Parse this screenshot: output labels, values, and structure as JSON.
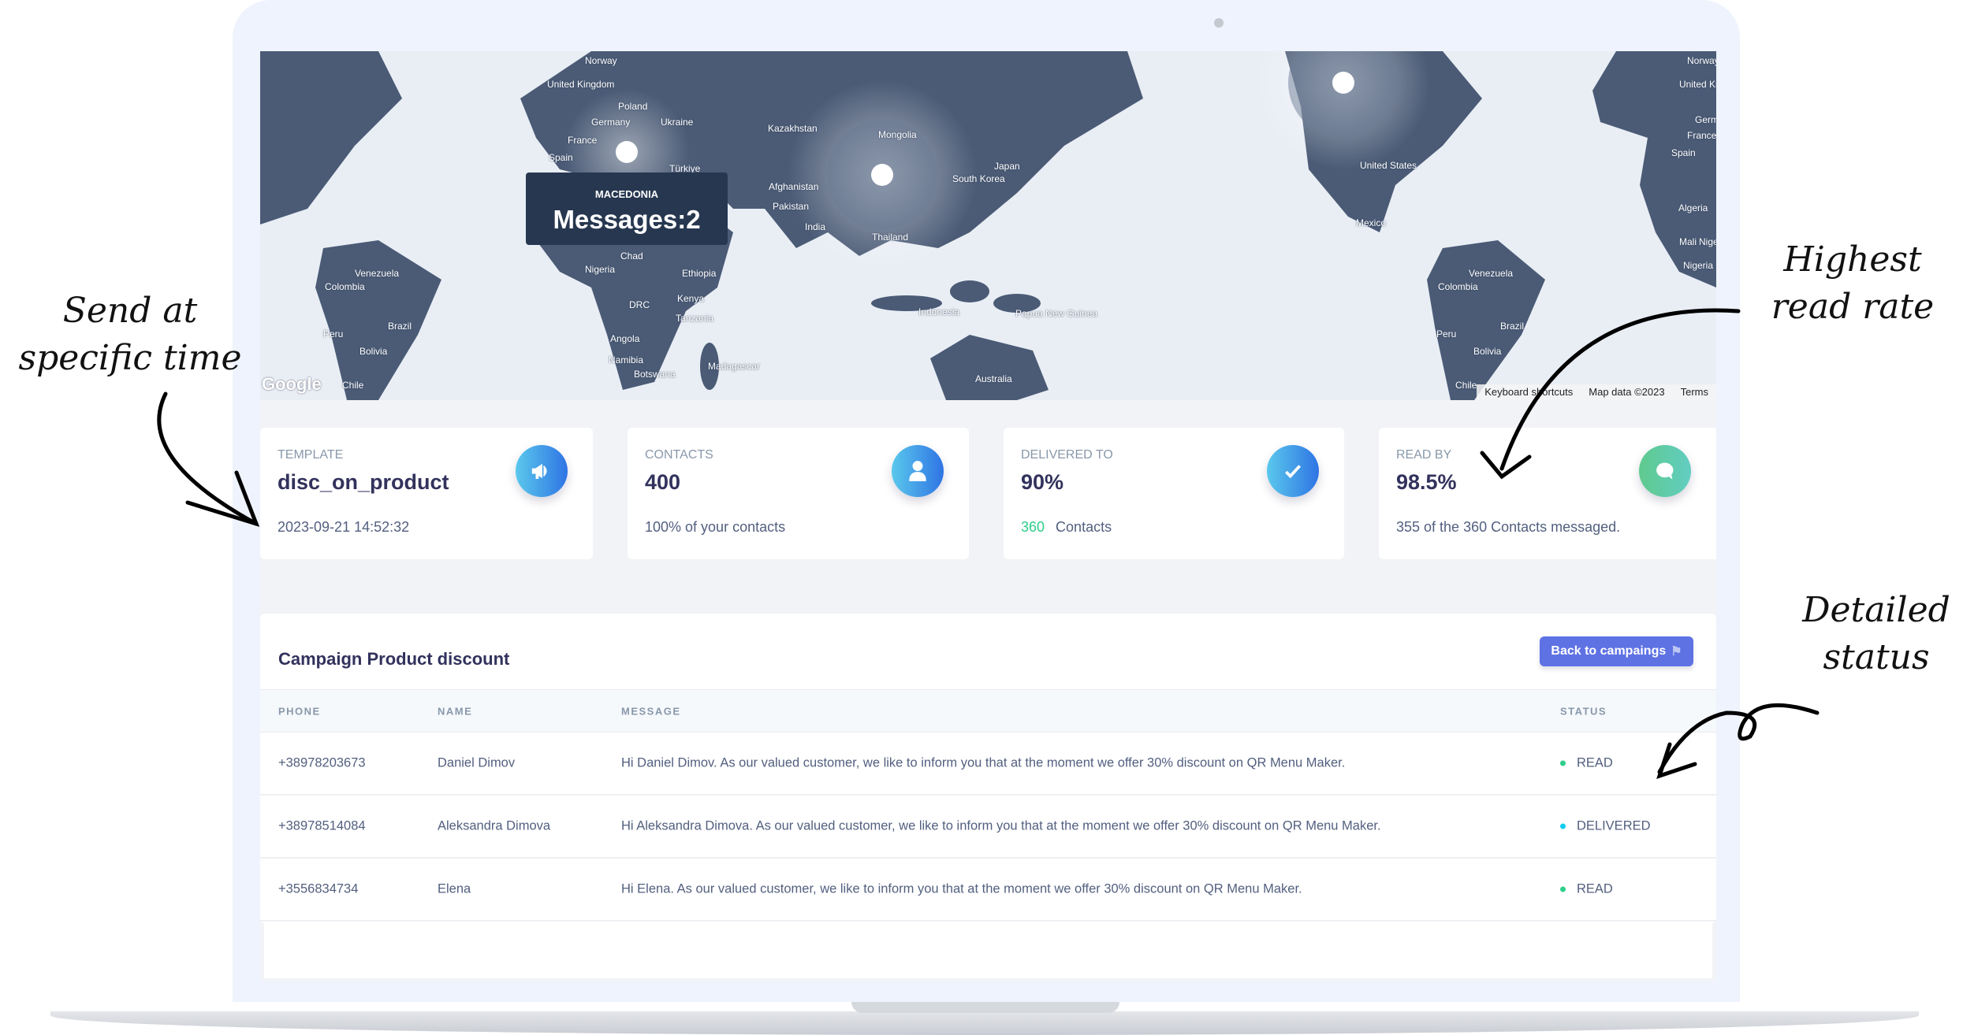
{
  "map": {
    "tooltip": {
      "country": "MACEDONIA",
      "value": "Messages:2"
    },
    "labels": [
      "Norway",
      "United Kingdom",
      "Poland",
      "Germany",
      "Ukraine",
      "France",
      "Spain",
      "Türkiye",
      "Kazakhstan",
      "Mongolia",
      "Afghanistan",
      "Pakistan",
      "India",
      "Thailand",
      "South Korea",
      "Japan",
      "Chad",
      "Nigeria",
      "Ethiopia",
      "Kenya",
      "DRC",
      "Tanzania",
      "Angola",
      "Namibia",
      "Botswana",
      "Madagascar",
      "Indonesia",
      "Papua New Guinea",
      "Australia",
      "Venezuela",
      "Colombia",
      "Brazil",
      "Peru",
      "Bolivia",
      "Chile",
      "United States",
      "Mexico",
      "Venezuela",
      "Colombia",
      "Brazil",
      "Peru",
      "Bolivia",
      "Chile",
      "Algeria",
      "Mali",
      "Niger",
      "Nigeria",
      "United Kingdom",
      "France",
      "Spain",
      "Germany",
      "Norway"
    ],
    "logo": "Google",
    "attribution": {
      "shortcuts": "Keyboard shortcuts",
      "data": "Map data ©2023",
      "terms": "Terms"
    }
  },
  "cards": [
    {
      "title": "TEMPLATE",
      "value": "disc_on_product",
      "footer": "2023-09-21 14:52:32",
      "icon": "megaphone-icon"
    },
    {
      "title": "CONTACTS",
      "value": "400",
      "footer": "100% of your contacts",
      "icon": "user-icon"
    },
    {
      "title": "DELIVERED TO",
      "value": "90%",
      "footer_count": "360",
      "footer": "Contacts",
      "icon": "check-icon"
    },
    {
      "title": "READ BY",
      "value": "98.5%",
      "footer": "355 of the 360 Contacts messaged.",
      "icon": "chat-bubble-icon"
    }
  ],
  "campaign": {
    "title": "Campaign Product discount",
    "back_button": "Back to campaings",
    "columns": [
      "PHONE",
      "NAME",
      "MESSAGE",
      "STATUS"
    ],
    "rows": [
      {
        "phone": "+38978203673",
        "name": "Daniel Dimov",
        "message": "Hi Daniel Dimov. As our valued customer, we like to inform you that at the moment we offer 30% discount on QR Menu Maker.",
        "status": "READ"
      },
      {
        "phone": "+38978514084",
        "name": "Aleksandra Dimova",
        "message": "Hi Aleksandra Dimova. As our valued customer, we like to inform you that at the moment we offer 30% discount on QR Menu Maker.",
        "status": "DELIVERED"
      },
      {
        "phone": "+3556834734",
        "name": "Elena",
        "message": "Hi Elena. As our valued customer, we like to inform you that at the moment we offer 30% discount on QR Menu Maker.",
        "status": "READ"
      }
    ]
  },
  "status_colors": {
    "READ": "#2dce89",
    "DELIVERED": "#11cdef"
  },
  "annotations": {
    "send_time": "Send at specific time",
    "read_rate": "Highest read rate",
    "status": "Detailed status"
  }
}
